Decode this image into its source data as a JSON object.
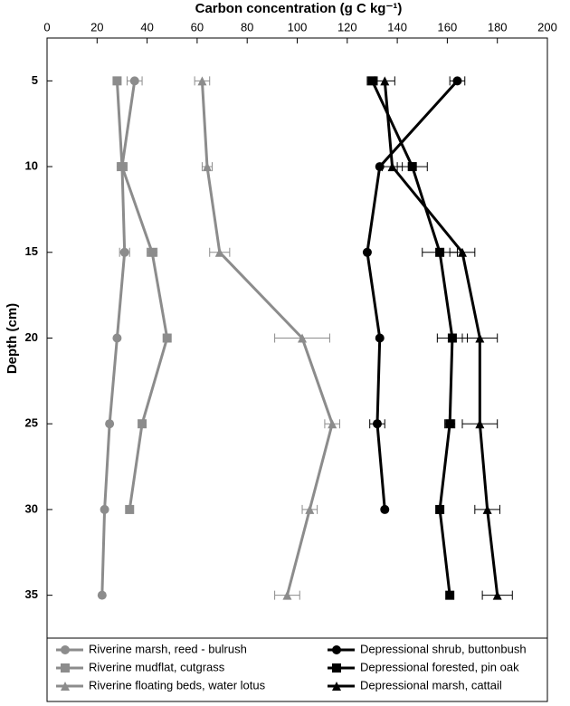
{
  "chart_data": {
    "type": "line",
    "title": "Carbon concentration (g C kg⁻¹)",
    "y_label": "Depth (cm)",
    "depth": [
      5,
      10,
      15,
      20,
      25,
      30,
      35
    ],
    "xlim": [
      0,
      200
    ],
    "xticks": [
      0,
      20,
      40,
      60,
      80,
      100,
      120,
      140,
      160,
      180,
      200
    ],
    "ylim": [
      2.5,
      37.5
    ],
    "yticks": [
      5,
      10,
      15,
      20,
      25,
      30,
      35
    ],
    "series": [
      {
        "name": "Riverine marsh, reed - bulrush",
        "color": "#8c8c8c",
        "marker": "circle",
        "values": [
          35,
          30,
          31,
          28,
          25,
          23,
          22
        ],
        "errors": [
          3,
          2,
          2,
          null,
          null,
          null,
          null
        ]
      },
      {
        "name": "Riverine mudflat, cutgrass",
        "color": "#8c8c8c",
        "marker": "square",
        "values": [
          28,
          30,
          42,
          48,
          38,
          33,
          null
        ],
        "errors": [
          null,
          null,
          2,
          null,
          null,
          null,
          null
        ]
      },
      {
        "name": "Riverine floating beds, water lotus",
        "color": "#8c8c8c",
        "marker": "triangle",
        "values": [
          62,
          64,
          69,
          102,
          114,
          105,
          96
        ],
        "errors": [
          3,
          2,
          4,
          11,
          3,
          3,
          5
        ]
      },
      {
        "name": "Depressional shrub, buttonbush",
        "color": "#000000",
        "marker": "circle",
        "values": [
          164,
          133,
          128,
          133,
          132,
          135,
          null
        ],
        "errors": [
          3,
          null,
          null,
          null,
          3,
          null,
          null
        ]
      },
      {
        "name": "Depressional forested, pin oak",
        "color": "#000000",
        "marker": "square",
        "values": [
          130,
          146,
          157,
          162,
          161,
          157,
          161
        ],
        "errors": [
          2,
          6,
          7,
          6,
          2,
          null,
          null
        ]
      },
      {
        "name": "Depressional marsh, cattail",
        "color": "#000000",
        "marker": "triangle",
        "values": [
          135,
          138,
          166,
          173,
          173,
          176,
          180
        ],
        "errors": [
          4,
          4,
          5,
          7,
          7,
          5,
          6
        ]
      }
    ]
  }
}
